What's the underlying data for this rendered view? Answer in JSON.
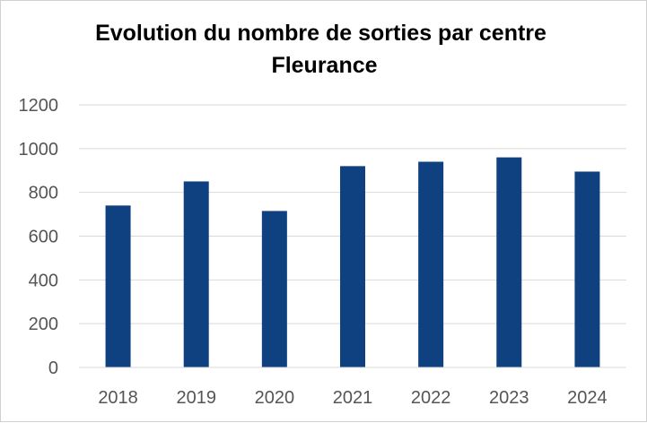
{
  "chart_data": {
    "type": "bar",
    "title_lines": [
      "Evolution du nombre de sorties par centre",
      "Fleurance"
    ],
    "categories": [
      "2018",
      "2019",
      "2020",
      "2021",
      "2022",
      "2023",
      "2024"
    ],
    "series": [
      {
        "values": [
          740,
          850,
          715,
          920,
          940,
          960,
          895
        ]
      }
    ],
    "ylim": [
      0,
      1200
    ],
    "yticks": [
      "0",
      "200",
      "400",
      "600",
      "800",
      "1000",
      "1200"
    ],
    "ytick_values": [
      0,
      200,
      400,
      600,
      800,
      1000,
      1200
    ],
    "xlabel": "",
    "ylabel": "",
    "grid": true,
    "legend": "none",
    "bar_color": "#0f4180",
    "grid_color": "#d9d9d9",
    "axis_color": "#d9d9d9",
    "label_color": "#555555"
  }
}
